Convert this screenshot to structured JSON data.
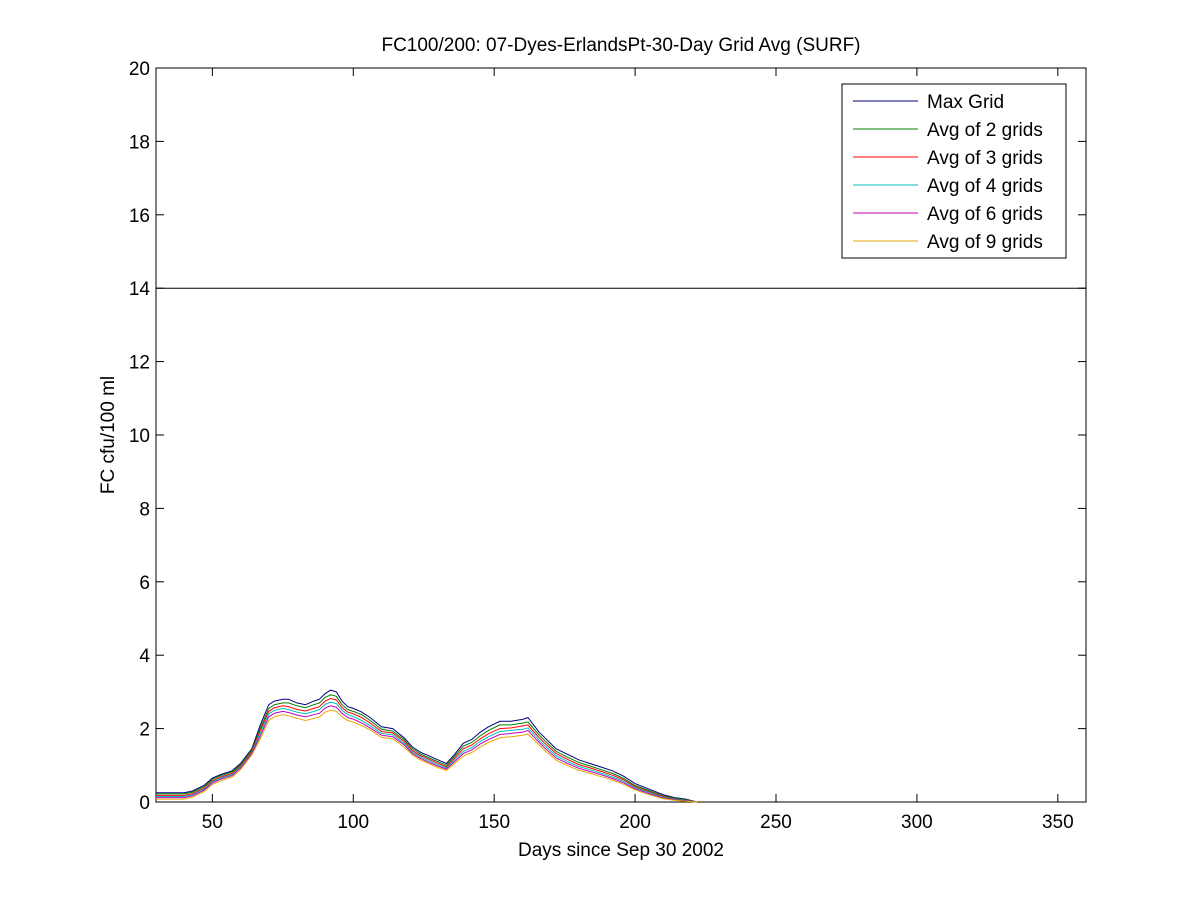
{
  "chart_data": {
    "type": "line",
    "title": "FC100/200: 07-Dyes-ErlandsPt-30-Day Grid Avg (SURF)",
    "xlabel": "Days since Sep 30 2002",
    "ylabel": "FC cfu/100 ml",
    "xlim": [
      30,
      360
    ],
    "ylim": [
      0,
      20
    ],
    "xticks": [
      50,
      100,
      150,
      200,
      250,
      300,
      350
    ],
    "yticks": [
      0,
      2,
      4,
      6,
      8,
      10,
      12,
      14,
      16,
      18,
      20
    ],
    "reference_line": 14,
    "legend_position": "top-right",
    "grid": false,
    "series": [
      {
        "name": "Max Grid",
        "color": "#000080",
        "x": [
          30,
          35,
          40,
          43,
          47,
          50,
          53,
          57,
          60,
          64,
          67,
          70,
          72,
          75,
          77,
          80,
          83,
          86,
          88,
          90,
          92,
          94,
          96,
          98,
          100,
          103,
          106,
          110,
          114,
          118,
          121,
          124,
          127,
          130,
          133,
          136,
          139,
          142,
          145,
          148,
          152,
          156,
          160,
          162,
          164,
          166,
          168,
          172,
          176,
          180,
          184,
          188,
          192,
          196,
          200,
          205,
          210,
          214,
          218,
          222
        ],
        "y": [
          0.25,
          0.25,
          0.25,
          0.3,
          0.45,
          0.65,
          0.75,
          0.85,
          1.05,
          1.45,
          2.1,
          2.65,
          2.75,
          2.8,
          2.8,
          2.7,
          2.65,
          2.75,
          2.8,
          2.95,
          3.05,
          3.0,
          2.75,
          2.6,
          2.55,
          2.45,
          2.3,
          2.05,
          2.0,
          1.75,
          1.5,
          1.35,
          1.25,
          1.15,
          1.05,
          1.3,
          1.6,
          1.7,
          1.9,
          2.05,
          2.2,
          2.2,
          2.25,
          2.3,
          2.1,
          1.9,
          1.75,
          1.45,
          1.3,
          1.15,
          1.05,
          0.95,
          0.85,
          0.7,
          0.5,
          0.35,
          0.2,
          0.12,
          0.08,
          0.0
        ]
      },
      {
        "name": "Avg of 2 grids",
        "color": "#008000",
        "x": [
          30,
          35,
          40,
          43,
          47,
          50,
          53,
          57,
          60,
          64,
          67,
          70,
          72,
          75,
          77,
          80,
          83,
          86,
          88,
          90,
          92,
          94,
          96,
          98,
          100,
          103,
          106,
          110,
          114,
          118,
          121,
          124,
          127,
          130,
          133,
          136,
          139,
          142,
          145,
          148,
          152,
          156,
          160,
          162,
          164,
          166,
          168,
          172,
          176,
          180,
          184,
          188,
          192,
          196,
          200,
          205,
          210,
          214,
          218,
          222
        ],
        "y": [
          0.22,
          0.22,
          0.22,
          0.27,
          0.42,
          0.62,
          0.72,
          0.82,
          1.02,
          1.42,
          2.02,
          2.55,
          2.65,
          2.7,
          2.7,
          2.62,
          2.57,
          2.65,
          2.7,
          2.85,
          2.92,
          2.88,
          2.65,
          2.52,
          2.47,
          2.38,
          2.22,
          1.98,
          1.93,
          1.7,
          1.45,
          1.3,
          1.2,
          1.1,
          1.0,
          1.25,
          1.52,
          1.62,
          1.8,
          1.95,
          2.1,
          2.1,
          2.15,
          2.18,
          2.0,
          1.82,
          1.67,
          1.38,
          1.22,
          1.08,
          0.98,
          0.88,
          0.78,
          0.64,
          0.45,
          0.31,
          0.17,
          0.1,
          0.06,
          0.0
        ]
      },
      {
        "name": "Avg of 3 grids",
        "color": "#ff0000",
        "x": [
          30,
          35,
          40,
          43,
          47,
          50,
          53,
          57,
          60,
          64,
          67,
          70,
          72,
          75,
          77,
          80,
          83,
          86,
          88,
          90,
          92,
          94,
          96,
          98,
          100,
          103,
          106,
          110,
          114,
          118,
          121,
          124,
          127,
          130,
          133,
          136,
          139,
          142,
          145,
          148,
          152,
          156,
          160,
          162,
          164,
          166,
          168,
          172,
          176,
          180,
          184,
          188,
          192,
          196,
          200,
          205,
          210,
          214,
          218,
          222
        ],
        "y": [
          0.18,
          0.18,
          0.18,
          0.23,
          0.38,
          0.58,
          0.68,
          0.78,
          0.98,
          1.38,
          1.95,
          2.47,
          2.57,
          2.62,
          2.6,
          2.52,
          2.48,
          2.55,
          2.6,
          2.75,
          2.82,
          2.78,
          2.57,
          2.45,
          2.4,
          2.3,
          2.15,
          1.92,
          1.88,
          1.65,
          1.4,
          1.26,
          1.16,
          1.06,
          0.96,
          1.2,
          1.45,
          1.55,
          1.72,
          1.86,
          2.0,
          2.02,
          2.07,
          2.1,
          1.92,
          1.75,
          1.6,
          1.32,
          1.16,
          1.02,
          0.93,
          0.83,
          0.73,
          0.6,
          0.42,
          0.28,
          0.15,
          0.08,
          0.05,
          0.0
        ]
      },
      {
        "name": "Avg of 4 grids",
        "color": "#00bfbf",
        "x": [
          30,
          35,
          40,
          43,
          47,
          50,
          53,
          57,
          60,
          64,
          67,
          70,
          72,
          75,
          77,
          80,
          83,
          86,
          88,
          90,
          92,
          94,
          96,
          98,
          100,
          103,
          106,
          110,
          114,
          118,
          121,
          124,
          127,
          130,
          133,
          136,
          139,
          142,
          145,
          148,
          152,
          156,
          160,
          162,
          164,
          166,
          168,
          172,
          176,
          180,
          184,
          188,
          192,
          196,
          200,
          205,
          210,
          214,
          218,
          222
        ],
        "y": [
          0.15,
          0.15,
          0.15,
          0.2,
          0.35,
          0.55,
          0.65,
          0.75,
          0.95,
          1.35,
          1.88,
          2.4,
          2.5,
          2.55,
          2.52,
          2.45,
          2.4,
          2.47,
          2.52,
          2.66,
          2.72,
          2.68,
          2.5,
          2.38,
          2.33,
          2.22,
          2.08,
          1.87,
          1.83,
          1.6,
          1.36,
          1.22,
          1.12,
          1.02,
          0.93,
          1.15,
          1.38,
          1.48,
          1.65,
          1.78,
          1.92,
          1.95,
          1.98,
          2.02,
          1.85,
          1.68,
          1.53,
          1.26,
          1.1,
          0.97,
          0.88,
          0.78,
          0.68,
          0.56,
          0.39,
          0.26,
          0.13,
          0.07,
          0.04,
          0.0
        ]
      },
      {
        "name": "Avg of 6 grids",
        "color": "#bf00bf",
        "x": [
          30,
          35,
          40,
          43,
          47,
          50,
          53,
          57,
          60,
          64,
          67,
          70,
          72,
          75,
          77,
          80,
          83,
          86,
          88,
          90,
          92,
          94,
          96,
          98,
          100,
          103,
          106,
          110,
          114,
          118,
          121,
          124,
          127,
          130,
          133,
          136,
          139,
          142,
          145,
          148,
          152,
          156,
          160,
          162,
          164,
          166,
          168,
          172,
          176,
          180,
          184,
          188,
          192,
          196,
          200,
          205,
          210,
          214,
          218,
          222
        ],
        "y": [
          0.12,
          0.12,
          0.12,
          0.17,
          0.32,
          0.52,
          0.62,
          0.72,
          0.92,
          1.32,
          1.8,
          2.32,
          2.42,
          2.47,
          2.44,
          2.37,
          2.32,
          2.38,
          2.42,
          2.56,
          2.62,
          2.58,
          2.42,
          2.3,
          2.26,
          2.15,
          2.02,
          1.82,
          1.78,
          1.56,
          1.32,
          1.18,
          1.08,
          0.98,
          0.9,
          1.1,
          1.32,
          1.42,
          1.58,
          1.7,
          1.84,
          1.87,
          1.9,
          1.95,
          1.78,
          1.62,
          1.47,
          1.2,
          1.05,
          0.92,
          0.83,
          0.74,
          0.64,
          0.52,
          0.36,
          0.23,
          0.11,
          0.06,
          0.03,
          0.0
        ]
      },
      {
        "name": "Avg of 9 grids",
        "color": "#e6a800",
        "x": [
          30,
          35,
          40,
          43,
          47,
          50,
          53,
          57,
          60,
          64,
          67,
          70,
          72,
          75,
          77,
          80,
          83,
          86,
          88,
          90,
          92,
          94,
          96,
          98,
          100,
          103,
          106,
          110,
          114,
          118,
          121,
          124,
          127,
          130,
          133,
          136,
          139,
          142,
          145,
          148,
          152,
          156,
          160,
          162,
          164,
          166,
          168,
          172,
          176,
          180,
          184,
          188,
          192,
          196,
          200,
          205,
          210,
          214,
          218,
          222
        ],
        "y": [
          0.08,
          0.08,
          0.08,
          0.13,
          0.28,
          0.48,
          0.58,
          0.68,
          0.88,
          1.28,
          1.72,
          2.22,
          2.32,
          2.38,
          2.35,
          2.28,
          2.22,
          2.28,
          2.32,
          2.45,
          2.5,
          2.47,
          2.32,
          2.22,
          2.18,
          2.08,
          1.96,
          1.76,
          1.72,
          1.5,
          1.28,
          1.14,
          1.04,
          0.94,
          0.86,
          1.05,
          1.25,
          1.35,
          1.5,
          1.62,
          1.75,
          1.78,
          1.82,
          1.85,
          1.7,
          1.55,
          1.4,
          1.14,
          0.99,
          0.87,
          0.78,
          0.69,
          0.6,
          0.48,
          0.33,
          0.2,
          0.09,
          0.05,
          0.02,
          0.0
        ]
      }
    ]
  }
}
